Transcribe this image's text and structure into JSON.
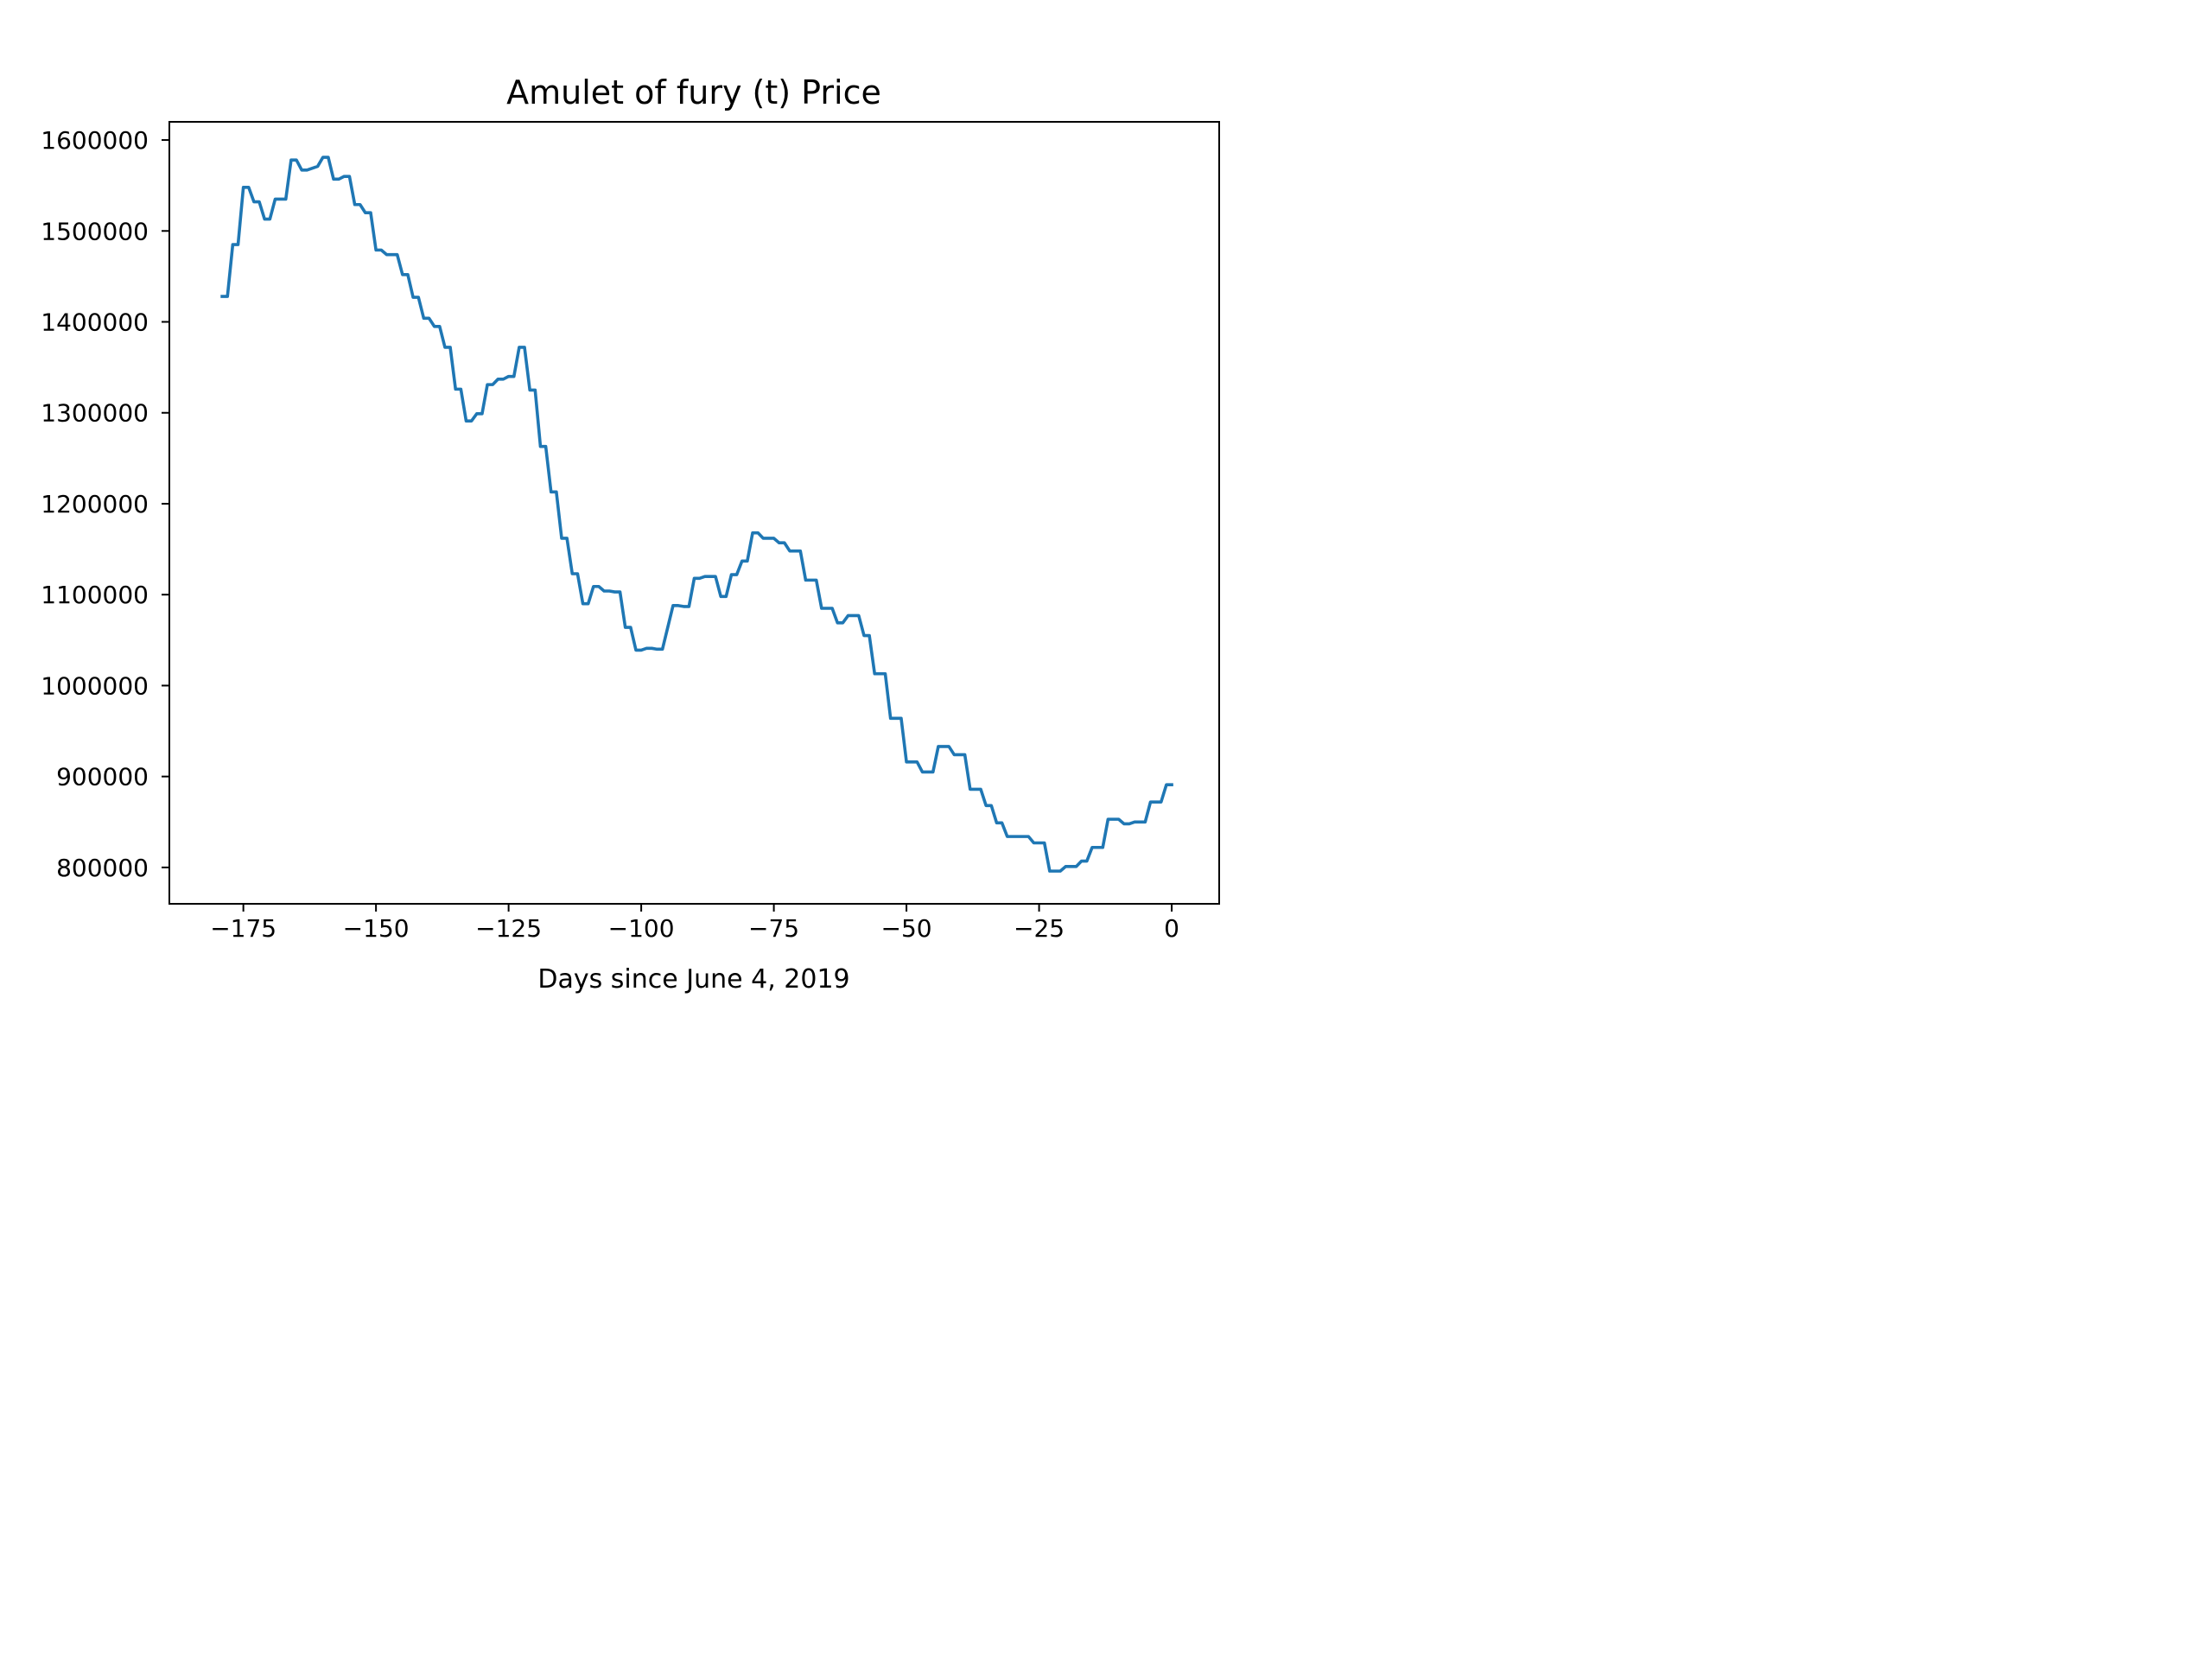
{
  "chart_data": {
    "type": "line",
    "title": "Amulet of fury (t) Price",
    "xlabel": "Days since June 4, 2019",
    "ylabel": "",
    "xlim": [
      -188.95,
      8.95
    ],
    "ylim": [
      760000,
      1620000
    ],
    "x_ticks": [
      -175,
      -150,
      -125,
      -100,
      -75,
      -50,
      -25,
      0
    ],
    "x_tick_labels": [
      "−175",
      "−150",
      "−125",
      "−100",
      "−75",
      "−50",
      "−25",
      "0"
    ],
    "y_ticks": [
      800000,
      900000,
      1000000,
      1100000,
      1200000,
      1300000,
      1400000,
      1500000,
      1600000
    ],
    "y_tick_labels": [
      "800000",
      "900000",
      "1000000",
      "1100000",
      "1200000",
      "1300000",
      "1400000",
      "1500000",
      "1600000"
    ],
    "grid": false,
    "legend": "none",
    "colors": {
      "series": "#1f77b4"
    },
    "series": [
      {
        "color": "#1f77b4",
        "x": [
          -179,
          -178,
          -177,
          -176,
          -175,
          -174,
          -173,
          -172,
          -171,
          -170,
          -169,
          -168,
          -167,
          -166,
          -165,
          -164,
          -163,
          -162,
          -161,
          -160,
          -159,
          -158,
          -157,
          -156,
          -155,
          -154,
          -153,
          -152,
          -151,
          -150,
          -149,
          -148,
          -147,
          -146,
          -145,
          -144,
          -143,
          -142,
          -141,
          -140,
          -139,
          -138,
          -137,
          -136,
          -135,
          -134,
          -133,
          -132,
          -131,
          -130,
          -129,
          -128,
          -127,
          -126,
          -125,
          -124,
          -123,
          -122,
          -121,
          -120,
          -119,
          -118,
          -117,
          -116,
          -115,
          -114,
          -113,
          -112,
          -111,
          -110,
          -109,
          -108,
          -107,
          -106,
          -105,
          -104,
          -103,
          -102,
          -101,
          -100,
          -99,
          -98,
          -97,
          -96,
          -95,
          -94,
          -93,
          -92,
          -91,
          -90,
          -89,
          -88,
          -87,
          -86,
          -85,
          -84,
          -83,
          -82,
          -81,
          -80,
          -79,
          -78,
          -77,
          -76,
          -75,
          -74,
          -73,
          -72,
          -71,
          -70,
          -69,
          -68,
          -67,
          -66,
          -65,
          -64,
          -63,
          -62,
          -61,
          -60,
          -59,
          -58,
          -57,
          -56,
          -55,
          -54,
          -53,
          -52,
          -51,
          -50,
          -49,
          -48,
          -47,
          -46,
          -45,
          -44,
          -43,
          -42,
          -41,
          -40,
          -39,
          -38,
          -37,
          -36,
          -35,
          -34,
          -33,
          -32,
          -31,
          -30,
          -29,
          -28,
          -27,
          -26,
          -25,
          -24,
          -23,
          -22,
          -21,
          -20,
          -19,
          -18,
          -17,
          -16,
          -15,
          -14,
          -13,
          -12,
          -11,
          -10,
          -9,
          -8,
          -7,
          -6,
          -5,
          -4,
          -3,
          -2,
          -1,
          0
        ],
        "y": [
          1428000,
          1428000,
          1485000,
          1485000,
          1548000,
          1548000,
          1532000,
          1532000,
          1513000,
          1513000,
          1535000,
          1535000,
          1535000,
          1578000,
          1578000,
          1567000,
          1567000,
          1569000,
          1571000,
          1581000,
          1581000,
          1557000,
          1557000,
          1560000,
          1560000,
          1529000,
          1529000,
          1520000,
          1520000,
          1479000,
          1479000,
          1474000,
          1474000,
          1474000,
          1452000,
          1452000,
          1427000,
          1427000,
          1404000,
          1404000,
          1395000,
          1395000,
          1372000,
          1372000,
          1326000,
          1326000,
          1291000,
          1291000,
          1299000,
          1299000,
          1331000,
          1331000,
          1337000,
          1337000,
          1340000,
          1340000,
          1372000,
          1372000,
          1325000,
          1325000,
          1263000,
          1263000,
          1213000,
          1213000,
          1162000,
          1162000,
          1123000,
          1123000,
          1090000,
          1090000,
          1109000,
          1109000,
          1104000,
          1104000,
          1103000,
          1103000,
          1064000,
          1064000,
          1039000,
          1039000,
          1041000,
          1041000,
          1040000,
          1040000,
          1064000,
          1088000,
          1088000,
          1087000,
          1087000,
          1118000,
          1118000,
          1120000,
          1120000,
          1120000,
          1098000,
          1098000,
          1122000,
          1122000,
          1137000,
          1137000,
          1168000,
          1168000,
          1162000,
          1162000,
          1162000,
          1157000,
          1157000,
          1148000,
          1148000,
          1148000,
          1116000,
          1116000,
          1116000,
          1085000,
          1085000,
          1085000,
          1069000,
          1069000,
          1077000,
          1077000,
          1077000,
          1055000,
          1055000,
          1013000,
          1013000,
          1013000,
          964000,
          964000,
          964000,
          916000,
          916000,
          916000,
          905000,
          905000,
          905000,
          933000,
          933000,
          933000,
          924000,
          924000,
          924000,
          886000,
          886000,
          886000,
          868000,
          868000,
          849000,
          849000,
          834000,
          834000,
          834000,
          834000,
          834000,
          827000,
          827000,
          827000,
          796000,
          796000,
          796000,
          801000,
          801000,
          801000,
          807000,
          807000,
          822000,
          822000,
          822000,
          853000,
          853000,
          853000,
          848000,
          848000,
          850000,
          850000,
          850000,
          872000,
          872000,
          872000,
          891000,
          891000
        ]
      }
    ]
  }
}
